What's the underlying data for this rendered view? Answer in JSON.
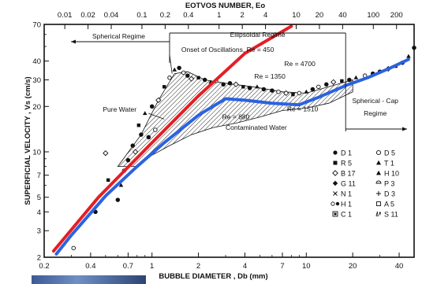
{
  "chart_data": {
    "type": "scatter",
    "title": "",
    "xlabel": "BUBBLE DIAMETER , Db (mm)",
    "ylabel": "SUPERFICIAL VELOCITY , Vs (cm/s)",
    "x2label": "EOTVOS NUMBER, Eo",
    "xscale": "log",
    "yscale": "log",
    "xlim": [
      0.2,
      50
    ],
    "ylim": [
      2,
      70
    ],
    "x2lim": [
      0.0054,
      338
    ],
    "x_ticks": [
      0.2,
      0.4,
      0.7,
      1,
      2,
      4,
      7,
      10,
      20,
      40
    ],
    "x_tick_labels": [
      "0.2",
      "0.4",
      "0.7",
      "1",
      "2",
      "4",
      "7",
      "10",
      "20",
      "40"
    ],
    "y_ticks": [
      2,
      3,
      4,
      5,
      7,
      10,
      20,
      30,
      40,
      70
    ],
    "y_tick_labels": [
      "2",
      "3",
      "4",
      "5",
      "7",
      "10",
      "20",
      "30",
      "40",
      "70"
    ],
    "x2_ticks": [
      0.01,
      0.02,
      0.04,
      0.1,
      0.2,
      0.4,
      1,
      2,
      4,
      10,
      20,
      40,
      100,
      200
    ],
    "x2_tick_labels": [
      "0.01",
      "0.02",
      "0.04",
      "0.1",
      "0.2",
      "0.4",
      "1",
      "2",
      "4",
      "10",
      "20",
      "40",
      "100",
      "200"
    ],
    "grid": false,
    "legend_position": "lower-right",
    "legend": [
      {
        "marker": "filled-circle",
        "label": "D 1"
      },
      {
        "marker": "filled-square",
        "label": "R 5"
      },
      {
        "marker": "open-diamond",
        "label": "B 17"
      },
      {
        "marker": "filled-diamond",
        "label": "G 11"
      },
      {
        "marker": "cross",
        "label": "N 1"
      },
      {
        "marker": "half-filled-circles",
        "label": "H 1"
      },
      {
        "marker": "boxed-square",
        "label": "C 1"
      },
      {
        "marker": "open-circle",
        "label": "D 5"
      },
      {
        "marker": "filled-triangle",
        "label": "T 1"
      },
      {
        "marker": "filled-triangle",
        "label": "H 10"
      },
      {
        "marker": "half-circle",
        "label": "P 3"
      },
      {
        "marker": "plus",
        "label": "D 3"
      },
      {
        "marker": "open-square",
        "label": "A 5"
      },
      {
        "marker": "open-and-filled-triangles",
        "label": "S 11"
      }
    ],
    "regimes": [
      {
        "label": "Spherical Regime",
        "from": 0.2,
        "to": 1.3
      },
      {
        "label": "Ellipsoidal Regime",
        "from": 1.3,
        "to": 18
      },
      {
        "label": "Spherical - Cap",
        "label2": "Regime",
        "from": 18,
        "to": 50
      }
    ],
    "annotations": [
      "Onset of Oscillations, Re = 450",
      "Re = 4700",
      "Re = 1350",
      "Pure Water",
      "Re = 880",
      "Re = 1510",
      "Contaminated Water"
    ],
    "series": [
      {
        "color": "#e41e26",
        "x": [
          0.23,
          0.45,
          1.0,
          2.0,
          4.0,
          8.0
        ],
        "y": [
          2.2,
          5.0,
          11.5,
          23.5,
          45.0,
          68.0
        ]
      },
      {
        "color": "#2c62e0",
        "x": [
          0.24,
          0.3,
          0.5,
          0.8,
          1.2,
          2.0,
          3.0,
          4.0,
          6.0,
          9.0,
          12.0,
          18.0,
          25.0,
          35.0,
          46.0
        ],
        "y": [
          2.1,
          2.8,
          5.1,
          8.0,
          11.5,
          17.5,
          22.5,
          22.0,
          21.0,
          20.5,
          23.0,
          27.5,
          31.0,
          36.0,
          41.0
        ]
      },
      {
        "color": "#111111",
        "x": [
          0.31,
          0.43,
          0.5,
          0.52,
          0.6,
          0.63,
          0.66,
          0.7,
          0.75,
          0.78,
          0.82,
          0.85,
          0.9,
          0.95,
          1.0,
          1.05,
          1.1,
          1.2,
          1.3,
          1.4,
          1.5,
          1.6,
          1.7,
          1.8,
          2.0,
          2.2,
          2.4,
          2.6,
          2.9,
          3.2,
          3.5,
          3.9,
          4.3,
          4.8,
          5.3,
          6.0,
          6.6,
          7.4,
          8.2,
          9.0,
          10.0,
          11.0,
          12.0,
          13.5,
          15.0,
          17.0,
          19.0,
          21.0,
          24.0,
          27.0,
          30.0,
          34.0,
          38.0,
          42.0,
          46.0,
          50.0
        ],
        "y": [
          2.3,
          4.0,
          9.8,
          6.5,
          4.8,
          6.0,
          7.5,
          8.8,
          11.0,
          10.0,
          15.0,
          13.0,
          18.0,
          12.5,
          20.0,
          14.0,
          22.0,
          27.0,
          31.0,
          35.0,
          36.0,
          33.5,
          32.0,
          30.5,
          31.0,
          30.0,
          29.0,
          29.5,
          28.0,
          28.5,
          28.0,
          27.0,
          26.5,
          27.0,
          26.0,
          25.5,
          25.0,
          24.5,
          24.0,
          24.5,
          25.0,
          26.0,
          27.0,
          28.0,
          29.0,
          29.5,
          30.0,
          31.0,
          32.0,
          33.0,
          34.0,
          35.5,
          37.0,
          39.0,
          43.0,
          49.0
        ]
      }
    ]
  }
}
